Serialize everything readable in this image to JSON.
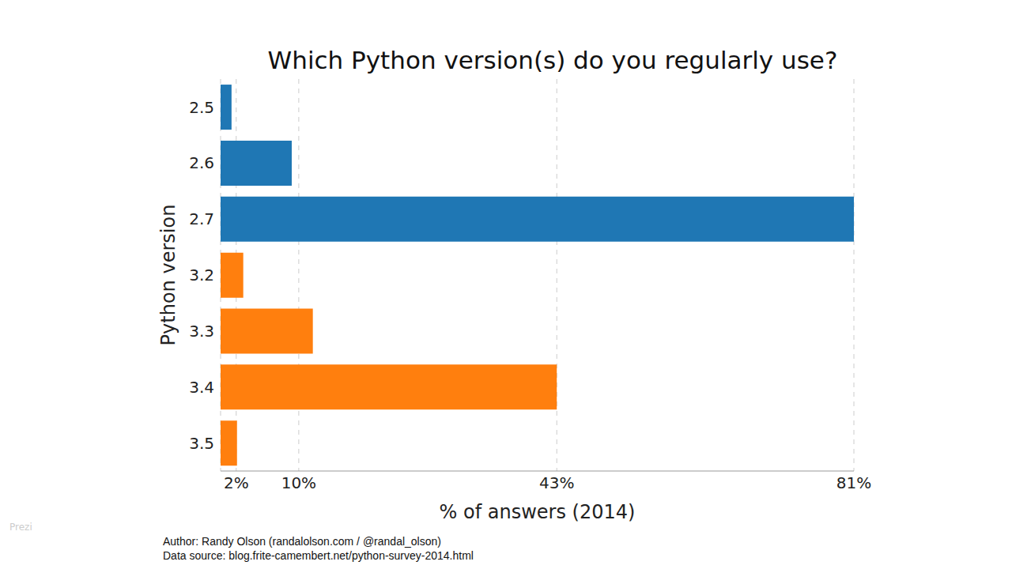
{
  "chart_data": {
    "type": "bar",
    "orientation": "horizontal",
    "title": "Which Python version(s) do you regularly use?",
    "x_label": "% of answers (2014)",
    "y_label": "Python version",
    "categories": [
      "2.5",
      "2.6",
      "2.7",
      "3.2",
      "3.3",
      "3.4",
      "3.5"
    ],
    "values": [
      1.4,
      9.1,
      81,
      2.9,
      11.8,
      43,
      2.1
    ],
    "colors": [
      "#1f77b4",
      "#1f77b4",
      "#1f77b4",
      "#ff7f0e",
      "#ff7f0e",
      "#ff7f0e",
      "#ff7f0e"
    ],
    "xlim": [
      0,
      81
    ],
    "xticks": [
      {
        "value": 2,
        "label": "2%"
      },
      {
        "value": 10,
        "label": "10%"
      },
      {
        "value": 43,
        "label": "43%"
      },
      {
        "value": 81,
        "label": "81%"
      }
    ],
    "grid": true,
    "footer": [
      "Author: Randy Olson (randalolson.com / @randal_olson)",
      "Data source: blog.frite-camembert.net/python-survey-2014.html"
    ],
    "watermark": "Prezi"
  }
}
